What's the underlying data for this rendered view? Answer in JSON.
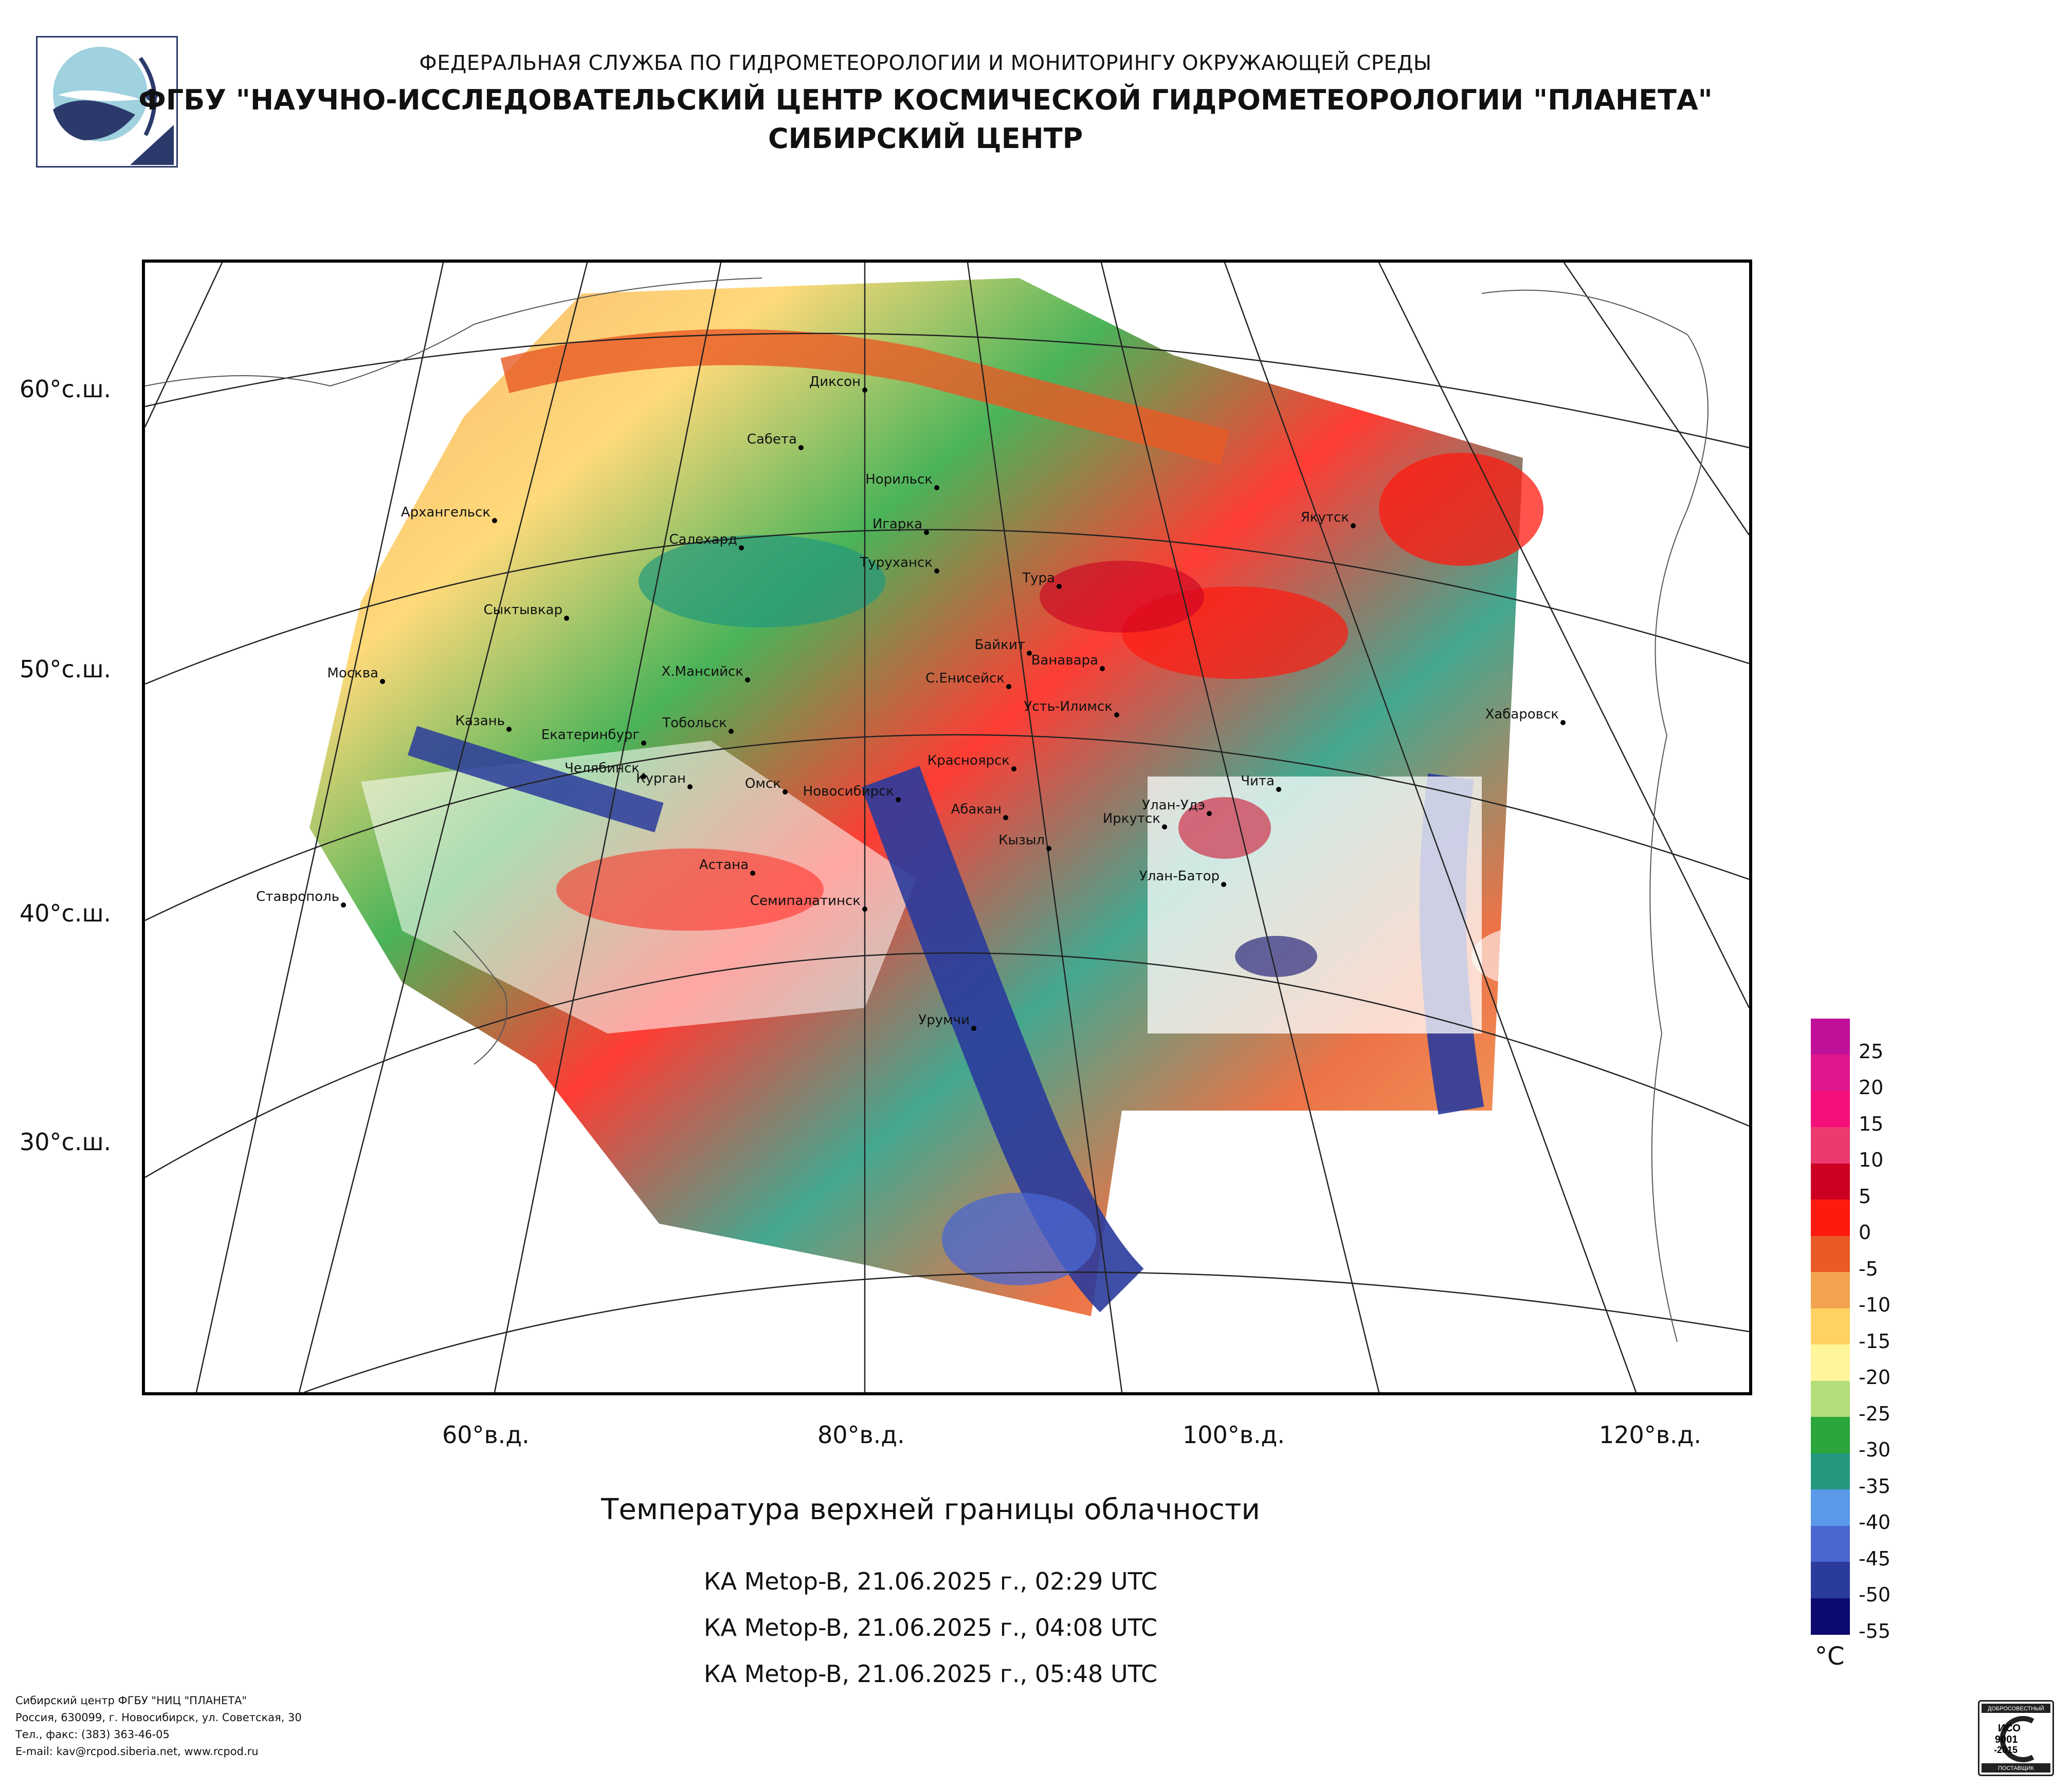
{
  "header": {
    "line1": "ФЕДЕРАЛЬНАЯ СЛУЖБА ПО ГИДРОМЕТЕОРОЛОГИИ И МОНИТОРИНГУ ОКРУЖАЮЩЕЙ СРЕДЫ",
    "line2": "ФГБУ \"НАУЧНО-ИССЛЕДОВАТЕЛЬСКИЙ ЦЕНТР КОСМИЧЕСКОЙ ГИДРОМЕТЕОРОЛОГИИ \"ПЛАНЕТА\"",
    "line3": "СИБИРСКИЙ ЦЕНТР"
  },
  "map": {
    "lat_labels": [
      "60°с.ш.",
      "50°с.ш.",
      "40°с.ш.",
      "30°с.ш."
    ],
    "lon_labels": [
      "60°в.д.",
      "80°в.д.",
      "100°в.д.",
      "120°в.д."
    ],
    "cities": [
      "Диксон",
      "Сабета",
      "Норильск",
      "Архангельск",
      "Игарка",
      "Салехард",
      "Туруханск",
      "Якутск",
      "Тура",
      "Сыктывкар",
      "Байкит",
      "Ванавара",
      "Москва",
      "Х.Мансийск",
      "С.Енисейск",
      "Усть-Илимск",
      "Хабаровск",
      "Казань",
      "Тобольск",
      "Екатеринбург",
      "Красноярск",
      "Челябинск",
      "Курган",
      "Чита",
      "Омск",
      "Новосибирск",
      "Абакан",
      "Улан-Удэ",
      "Иркутск",
      "Кызыл",
      "Астана",
      "Улан-Батор",
      "Ставрополь",
      "Семипалатинск",
      "Урумчи"
    ]
  },
  "title": "Температура верхней границы облачности",
  "passes": [
    "КА Metop-B, 21.06.2025 г., 02:29 UTC",
    "КА Metop-B, 21.06.2025 г., 04:08 UTC",
    "КА Metop-B, 21.06.2025 г., 05:48 UTC"
  ],
  "legend": {
    "unit": "°C",
    "ticks": [
      "25",
      "20",
      "15",
      "10",
      "5",
      "0",
      "-5",
      "-10",
      "-15",
      "-20",
      "-25",
      "-30",
      "-35",
      "-40",
      "-45",
      "-50",
      "-55"
    ],
    "colors": [
      "#c0109a",
      "#e0168c",
      "#f50f7a",
      "#ec3a6e",
      "#cc0022",
      "#ff1a10",
      "#e95a26",
      "#f3a450",
      "#ffd363",
      "#fff59a",
      "#b2dd78",
      "#2aa63c",
      "#23987c",
      "#5a9ae8",
      "#4b67d2",
      "#2a3b9c",
      "#0b0a6e"
    ]
  },
  "footer": [
    "Сибирский центр ФГБУ \"НИЦ \"ПЛАНЕТА\"",
    "Россия, 630099, г. Новосибирск, ул. Советская, 30",
    "Тел., факс: (383) 363-46-05",
    "E-mail: kav@rcpod.siberia.net, www.rcpod.ru"
  ],
  "iso": {
    "line1": "ИСО",
    "line2": "9001",
    "line3": "-2015",
    "top_text": "ДОБРОСОВЕСТНЫЙ",
    "bottom_text": "ПОСТАВЩИК"
  }
}
